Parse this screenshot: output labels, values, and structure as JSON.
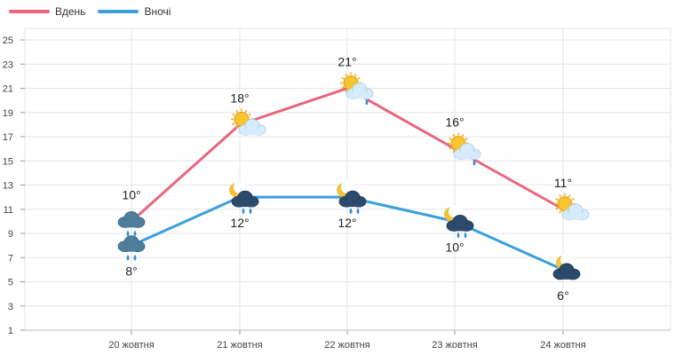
{
  "legend": [
    {
      "label": "Вдень",
      "color": "#e8657d"
    },
    {
      "label": "Вночі",
      "color": "#3a9fdc"
    }
  ],
  "chart_data": {
    "type": "line",
    "categories": [
      "20 жовтня",
      "21 жовтня",
      "22 жовтня",
      "23 жовтня",
      "24 жовтня"
    ],
    "series": [
      {
        "name": "Вдень",
        "color": "#e8657d",
        "values": [
          10,
          18,
          21,
          16,
          11
        ],
        "labels": [
          "10°",
          "18°",
          "21°",
          "16°",
          "11°"
        ],
        "icons": [
          "rain-cloud-icon",
          "sun-cloud-icon",
          "sun-cloud-rain-icon",
          "sun-cloud-rain-icon",
          "sun-cloud-icon"
        ]
      },
      {
        "name": "Вночі",
        "color": "#3a9fdc",
        "values": [
          8,
          12,
          12,
          10,
          6
        ],
        "labels": [
          "8°",
          "12°",
          "12°",
          "10°",
          "6°"
        ],
        "icons": [
          "rain-cloud-icon",
          "moon-cloud-rain-icon",
          "moon-cloud-rain-icon",
          "moon-cloud-rain-icon",
          "moon-cloud-icon"
        ]
      }
    ],
    "yticks": [
      "1",
      "3",
      "5",
      "7",
      "9",
      "11",
      "13",
      "15",
      "17",
      "19",
      "21",
      "23",
      "25"
    ],
    "ylim": [
      1,
      25
    ],
    "grid": true,
    "legend_position": "top-left"
  }
}
